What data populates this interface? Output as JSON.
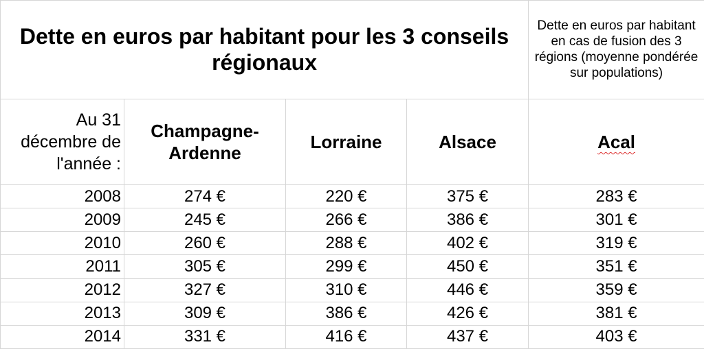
{
  "title": "Dette en euros par habitant pour les 3 conseils régionaux",
  "note": "Dette en euros par habitant en cas de fusion des 3 régions (moyenne pondérée sur populations)",
  "year_header": "Au 31 décembre de l'année :",
  "columns": {
    "champagne": "Champagne-Ardenne",
    "lorraine": "Lorraine",
    "alsace": "Alsace",
    "acal": "Acal"
  },
  "rows": [
    {
      "year": "2008",
      "champagne": "274 €",
      "lorraine": "220 €",
      "alsace": "375 €",
      "acal": "283 €"
    },
    {
      "year": "2009",
      "champagne": "245 €",
      "lorraine": "266 €",
      "alsace": "386 €",
      "acal": "301 €"
    },
    {
      "year": "2010",
      "champagne": "260 €",
      "lorraine": "288 €",
      "alsace": "402 €",
      "acal": "319 €"
    },
    {
      "year": "2011",
      "champagne": "305 €",
      "lorraine": "299 €",
      "alsace": "450 €",
      "acal": "351 €"
    },
    {
      "year": "2012",
      "champagne": "327 €",
      "lorraine": "310 €",
      "alsace": "446 €",
      "acal": "359 €"
    },
    {
      "year": "2013",
      "champagne": "309 €",
      "lorraine": "386 €",
      "alsace": "426 €",
      "acal": "381 €"
    },
    {
      "year": "2014",
      "champagne": "331 €",
      "lorraine": "416 €",
      "alsace": "437 €",
      "acal": "403 €"
    }
  ]
}
